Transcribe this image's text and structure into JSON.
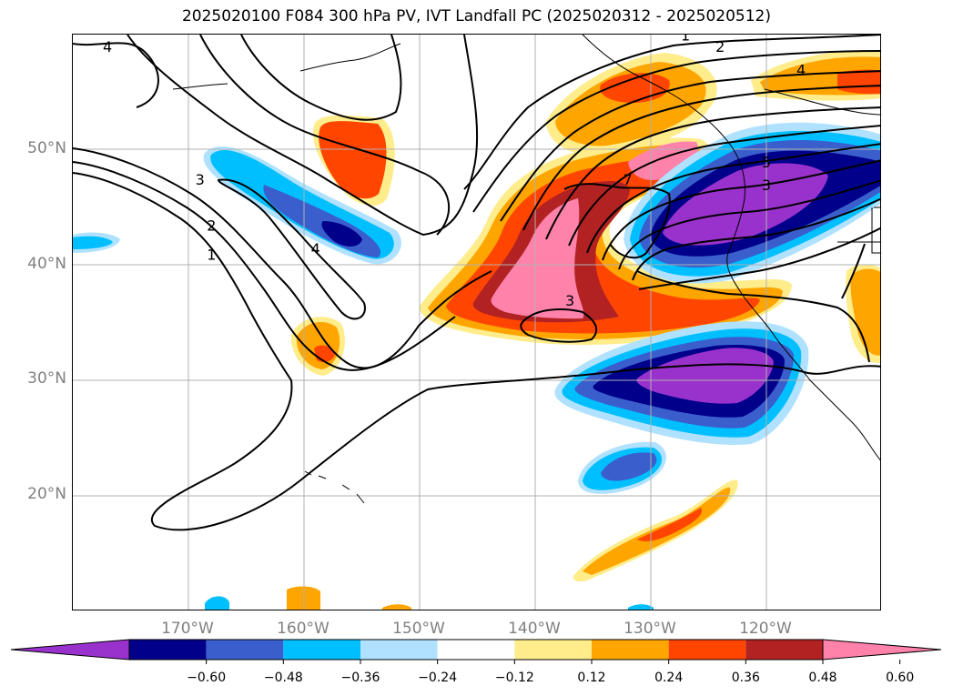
{
  "title": "2025020100 F084 300 hPa PV, IVT Landfall PC (2025020312 - 2025020512)",
  "map": {
    "lat_labels": [
      {
        "text": "50°N",
        "lat": 50
      },
      {
        "text": "40°N",
        "lat": 40
      },
      {
        "text": "30°N",
        "lat": 30
      },
      {
        "text": "20°N",
        "lat": 20
      }
    ],
    "lon_labels": [
      {
        "text": "170°W",
        "lon": -170
      },
      {
        "text": "160°W",
        "lon": -160
      },
      {
        "text": "150°W",
        "lon": -150
      },
      {
        "text": "140°W",
        "lon": -140
      },
      {
        "text": "130°W",
        "lon": -130
      },
      {
        "text": "120°W",
        "lon": -120
      }
    ],
    "extent": {
      "lon_min": -180,
      "lon_max": -110,
      "lat_min": 10,
      "lat_max": 60
    },
    "contour_labels": [
      {
        "text": "4",
        "lon": -177,
        "lat": 58.5
      },
      {
        "text": "1",
        "lon": -127,
        "lat": 59.5
      },
      {
        "text": "2",
        "lon": -124,
        "lat": 58.5
      },
      {
        "text": "4",
        "lon": -117,
        "lat": 56.5
      },
      {
        "text": "5",
        "lon": -120,
        "lat": 48.5
      },
      {
        "text": "3",
        "lon": -120,
        "lat": 46.5
      },
      {
        "text": "7",
        "lon": -132,
        "lat": 47
      },
      {
        "text": "3",
        "lon": -169,
        "lat": 47
      },
      {
        "text": "2",
        "lon": -168,
        "lat": 43
      },
      {
        "text": "1",
        "lon": -168,
        "lat": 40.5
      },
      {
        "text": "4",
        "lon": -159,
        "lat": 41
      },
      {
        "text": "3",
        "lon": -137,
        "lat": 36.5
      }
    ]
  },
  "colorbar": {
    "ticks": [
      "−0.60",
      "−0.48",
      "−0.36",
      "−0.24",
      "−0.12",
      "0.12",
      "0.24",
      "0.36",
      "0.48",
      "0.60"
    ],
    "colors": [
      "#9932cc",
      "#00008b",
      "#3a5fcd",
      "#00bfff",
      "#b0e2ff",
      "#ffffff",
      "#ffec8b",
      "#ffa500",
      "#ff4500",
      "#b22222",
      "#ff82ab"
    ]
  },
  "palette": {
    "purple": "#9932cc",
    "navy": "#00008b",
    "royal": "#3a5fcd",
    "deepsky": "#00bfff",
    "lightsky": "#b0e2ff",
    "lightyellow": "#ffec8b",
    "orange": "#ffa500",
    "orangered": "#ff4500",
    "firebrick": "#b22222",
    "pink": "#ff82ab"
  }
}
